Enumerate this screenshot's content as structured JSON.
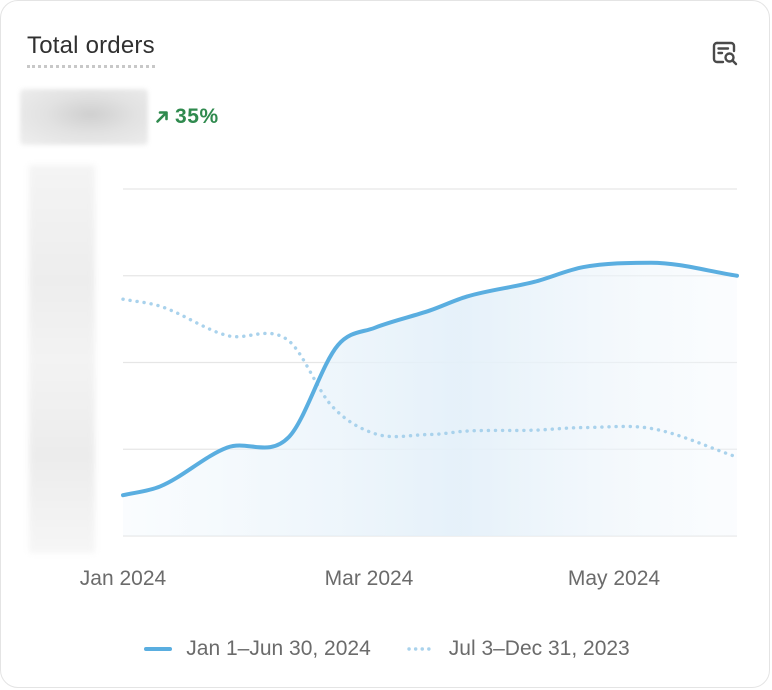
{
  "card": {
    "title": "Total orders",
    "delta": "35%",
    "icons": {
      "search": "search-icon",
      "delta": "arrow-up-right-icon"
    }
  },
  "colors": {
    "primary": "#5aaee0",
    "comparison": "#a9d2ec",
    "positive": "#2f8a4e",
    "grid": "#e6e6e6"
  },
  "chart_data": {
    "type": "line",
    "x_tick_labels": [
      "Jan 2024",
      "Mar 2024",
      "May 2024"
    ],
    "y_range": [
      0,
      4
    ],
    "grid": true,
    "legend_position": "bottom",
    "series": [
      {
        "name": "Jan 1–Jun 30, 2024",
        "style": "solid",
        "area_fill": true,
        "points": [
          [
            0,
            0.47
          ],
          [
            0.06,
            0.57
          ],
          [
            0.17,
            1.02
          ],
          [
            0.27,
            1.14
          ],
          [
            0.35,
            2.2
          ],
          [
            0.41,
            2.4
          ],
          [
            0.5,
            2.6
          ],
          [
            0.56,
            2.76
          ],
          [
            0.67,
            2.93
          ],
          [
            0.75,
            3.1
          ],
          [
            0.86,
            3.15
          ],
          [
            1,
            3.0
          ]
        ]
      },
      {
        "name": "Jul 3–Dec 31, 2023",
        "style": "dotted",
        "area_fill": false,
        "points": [
          [
            0,
            2.73
          ],
          [
            0.06,
            2.65
          ],
          [
            0.17,
            2.31
          ],
          [
            0.27,
            2.25
          ],
          [
            0.34,
            1.5
          ],
          [
            0.41,
            1.18
          ],
          [
            0.5,
            1.17
          ],
          [
            0.56,
            1.21
          ],
          [
            0.67,
            1.22
          ],
          [
            0.75,
            1.25
          ],
          [
            0.86,
            1.24
          ],
          [
            1,
            0.91
          ]
        ]
      }
    ]
  }
}
